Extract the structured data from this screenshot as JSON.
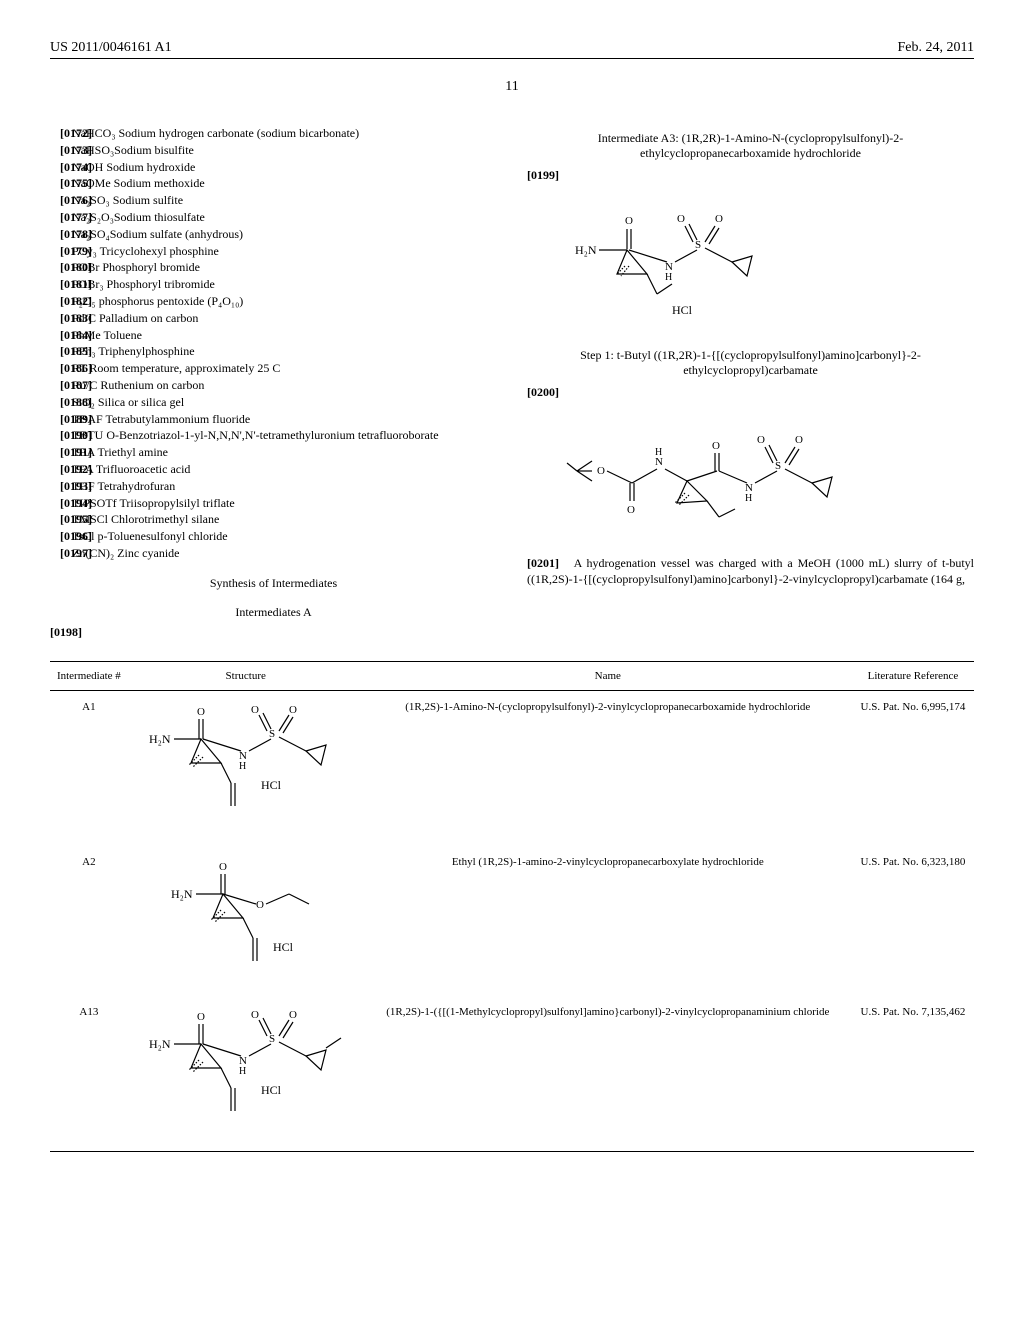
{
  "header": {
    "patent": "US 2011/0046161 A1",
    "date": "Feb. 24, 2011",
    "page": "11"
  },
  "abbreviations": [
    {
      "n": "[0172]",
      "t": "NaHCO₃ Sodium hydrogen carbonate (sodium bicarbonate)"
    },
    {
      "n": "[0173]",
      "t": "NaHSO₃Sodium bisulfite"
    },
    {
      "n": "[0174]",
      "t": "NaOH Sodium hydroxide"
    },
    {
      "n": "[0175]",
      "t": "NaOMe Sodium methoxide"
    },
    {
      "n": "[0176]",
      "t": "Na₂SO₃ Sodium sulfite"
    },
    {
      "n": "[0177]",
      "t": "Na₂S₂O₃Sodium thiosulfate"
    },
    {
      "n": "[0178]",
      "t": "Na₂SO₄Sodium sulfate (anhydrous)"
    },
    {
      "n": "[0179]",
      "t": "PCy₃ Tricyclohexyl phosphine"
    },
    {
      "n": "[0180]",
      "t": "POBr Phosphoryl bromide"
    },
    {
      "n": "[0181]",
      "t": "POBr₃ Phosphoryl tribromide"
    },
    {
      "n": "[0182]",
      "t": "P₂O₅ phosphorus pentoxide (P₄O₁₀)"
    },
    {
      "n": "[0183]",
      "t": "Pd/C Palladium on carbon"
    },
    {
      "n": "[0184]",
      "t": "PhMe Toluene"
    },
    {
      "n": "[0185]",
      "t": "PPh₃ Triphenylphosphine"
    },
    {
      "n": "[0186]",
      "t": "RT Room temperature, approximately 25 C"
    },
    {
      "n": "[0187]",
      "t": "Ru/C Ruthenium on carbon"
    },
    {
      "n": "[0188]",
      "t": "SiO₂ Silica or silica gel"
    },
    {
      "n": "[0189]",
      "t": "TBAF Tetrabutylammonium fluoride"
    },
    {
      "n": "[0190]",
      "t": "TBTU O-Benzotriazol-1-yl-N,N,N',N'-tetramethyluronium tetrafluoroborate"
    },
    {
      "n": "[0191]",
      "t": "TEA Triethyl amine"
    },
    {
      "n": "[0192]",
      "t": "TFA Trifluoroacetic acid"
    },
    {
      "n": "[0193]",
      "t": "THF Tetrahydrofuran"
    },
    {
      "n": "[0194]",
      "t": "TIPSOTf Triisopropylsilyl triflate"
    },
    {
      "n": "[0195]",
      "t": "TMSCl Chlorotrimethyl silane"
    },
    {
      "n": "[0196]",
      "t": "TsCl p-Toluenesulfonyl chloride"
    },
    {
      "n": "[0197]",
      "t": "Zn(CN)₂ Zinc cyanide"
    }
  ],
  "left": {
    "sec1": "Synthesis of Intermediates",
    "sec2": "Intermediates A",
    "p198": "[0198]"
  },
  "right": {
    "int_a3_title": "Intermediate A3: (1R,2R)-1-Amino-N-(cyclopropylsulfonyl)-2-ethylcyclopropanecarboxamide hydrochloride",
    "p199": "[0199]",
    "step1_title": "Step 1: t-Butyl ((1R,2R)-1-{[(cyclopropylsulfonyl)amino]carbonyl}-2-ethylcyclopropyl)carbamate",
    "p200": "[0200]",
    "p201_num": "[0201]",
    "p201_text": "A hydrogenation vessel was charged with a MeOH (1000 mL) slurry of t-butyl ((1R,2S)-1-{[(cyclopropylsulfonyl)amino]carbonyl}-2-vinylcyclopropyl)carbamate (164 g,"
  },
  "table": {
    "headers": [
      "Intermediate #",
      "Structure",
      "Name",
      "Literature Reference"
    ],
    "rows": [
      {
        "id": "A1",
        "name": "(1R,2S)-1-Amino-N-(cyclopropylsulfonyl)-2-vinylcyclopropanecarboxamide hydrochloride",
        "ref": "U.S. Pat. No. 6,995,174"
      },
      {
        "id": "A2",
        "name": "Ethyl (1R,2S)-1-amino-2-vinylcyclopropanecarboxylate hydrochloride",
        "ref": "U.S. Pat. No. 6,323,180"
      },
      {
        "id": "A13",
        "name": "(1R,2S)-1-({[(1-Methylcyclopropyl)sulfonyl]amino}carbonyl)-2-vinylcyclopropanaminium chloride",
        "ref": "U.S. Pat. No. 7,135,462"
      }
    ]
  },
  "chem_labels": {
    "h2n": "H₂N",
    "hcl": "HCl",
    "o": "O",
    "nh": "N",
    "h": "H",
    "s": "S"
  }
}
